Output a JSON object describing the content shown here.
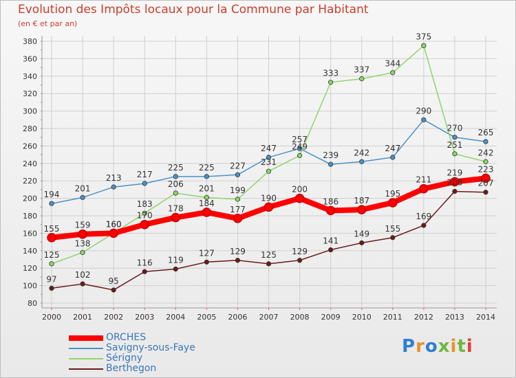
{
  "title": "Evolution des Impôts locaux pour la Commune par Habitant",
  "subtitle": "(en € et par an)",
  "logo": {
    "text": "Proxiti",
    "colors": [
      "#2f7fd0",
      "#e8922c",
      "#2f7fd0",
      "#6fb83e",
      "#e8922c",
      "#6fb83e",
      "#e2403a"
    ]
  },
  "chart_data": {
    "type": "line",
    "x": [
      2000,
      2001,
      2002,
      2003,
      2004,
      2005,
      2006,
      2007,
      2008,
      2009,
      2010,
      2011,
      2012,
      2013,
      2014
    ],
    "ylim": [
      80,
      380
    ],
    "ytick_step": 20,
    "grid": true,
    "legend": "bottom-left",
    "series": [
      {
        "name": "ORCHES",
        "color": "#ff0000",
        "values": [
          155,
          159,
          160,
          170,
          178,
          184,
          177,
          190,
          200,
          186,
          187,
          195,
          211,
          219,
          223
        ]
      },
      {
        "name": "Savigny-sous-Faye",
        "color": "#4b91c8",
        "values": [
          194,
          201,
          213,
          217,
          225,
          225,
          227,
          247,
          257,
          239,
          242,
          247,
          290,
          270,
          265
        ]
      },
      {
        "name": "Sérigny",
        "color": "#8fd46a",
        "values": [
          125,
          138,
          160,
          183,
          206,
          201,
          199,
          231,
          249,
          333,
          337,
          344,
          375,
          251,
          242
        ]
      },
      {
        "name": "Berthegon",
        "color": "#6b1a1a",
        "values": [
          97,
          102,
          95,
          116,
          119,
          127,
          129,
          125,
          129,
          141,
          149,
          155,
          169,
          208,
          207
        ]
      }
    ]
  }
}
